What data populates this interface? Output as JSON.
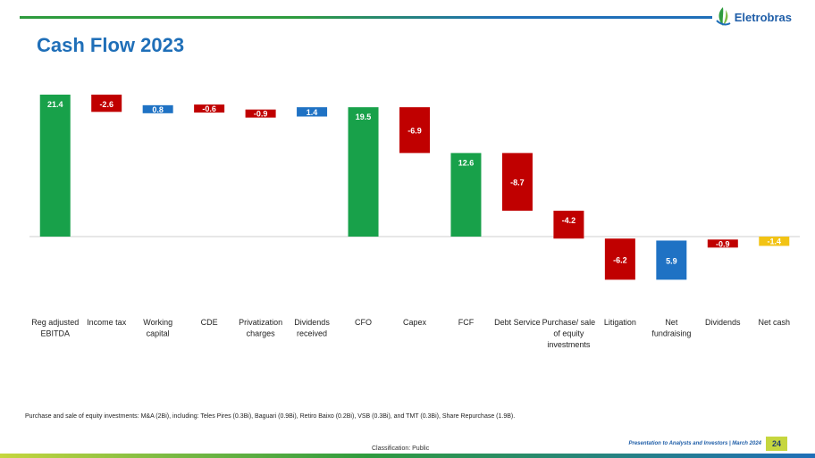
{
  "header": {
    "brand": "Eletrobras",
    "title": "Cash Flow 2023"
  },
  "colors": {
    "green": "#18a14a",
    "red": "#c00000",
    "blue": "#1f72c4",
    "yellow": "#f2c314",
    "accent_title": "#1f6fb8"
  },
  "chart_data": {
    "type": "bar",
    "subtype": "waterfall",
    "title": "Cash Flow 2023",
    "xlabel": "",
    "ylabel": "",
    "ylim": [
      -8,
      22
    ],
    "grid": false,
    "categories": [
      "Reg adjusted EBITDA",
      "Income tax",
      "Working capital",
      "CDE",
      "Privatization charges",
      "Dividends received",
      "CFO",
      "Capex",
      "FCF",
      "Debt Service",
      "Purchase/ sale of equity investments",
      "Litigation",
      "Net fundraising",
      "Dividends",
      "Net cash"
    ],
    "values": [
      21.4,
      -2.6,
      0.8,
      -0.6,
      -0.9,
      1.4,
      19.5,
      -6.9,
      12.6,
      -8.7,
      -4.2,
      -6.2,
      5.9,
      -0.9,
      -1.4
    ],
    "labels": [
      "21.4",
      "-2.6",
      "0.8",
      "-0.6",
      "-0.9",
      "1.4",
      "19.5",
      "-6.9",
      "12.6",
      "-8.7",
      "-4.2",
      "-6.2",
      "5.9",
      "-0.9",
      "-1.4"
    ],
    "bar_types": [
      "total",
      "delta",
      "delta",
      "delta",
      "delta",
      "delta",
      "total",
      "delta",
      "total",
      "delta",
      "delta",
      "delta",
      "delta",
      "delta",
      "total"
    ],
    "bar_start": [
      0,
      21.4,
      18.8,
      19.6,
      19.0,
      18.1,
      0,
      19.5,
      0,
      12.6,
      3.9,
      -0.3,
      -6.5,
      -0.6,
      0
    ],
    "bar_end": [
      21.4,
      18.8,
      19.6,
      19.0,
      18.1,
      19.5,
      19.5,
      12.6,
      12.6,
      3.9,
      -0.3,
      -6.5,
      -0.6,
      -1.5,
      -1.4
    ],
    "bar_colors": [
      "green",
      "red",
      "blue",
      "red",
      "red",
      "blue",
      "green",
      "red",
      "green",
      "red",
      "red",
      "red",
      "blue",
      "red",
      "yellow"
    ]
  },
  "footnote": "Purchase and sale of equity investments: M&A (2Bi), including: Teles Pires (0.3Bi), Baguari (0.9Bi), Retiro Baixo (0.2Bi), VSB (0.3Bi), and TMT (0.3Bi), Share Repurchase (1.9B).",
  "footer": {
    "classification": "Classification: Public",
    "presentation": "Presentation to Analysts and Investors | March 2024",
    "page_number": "24"
  }
}
